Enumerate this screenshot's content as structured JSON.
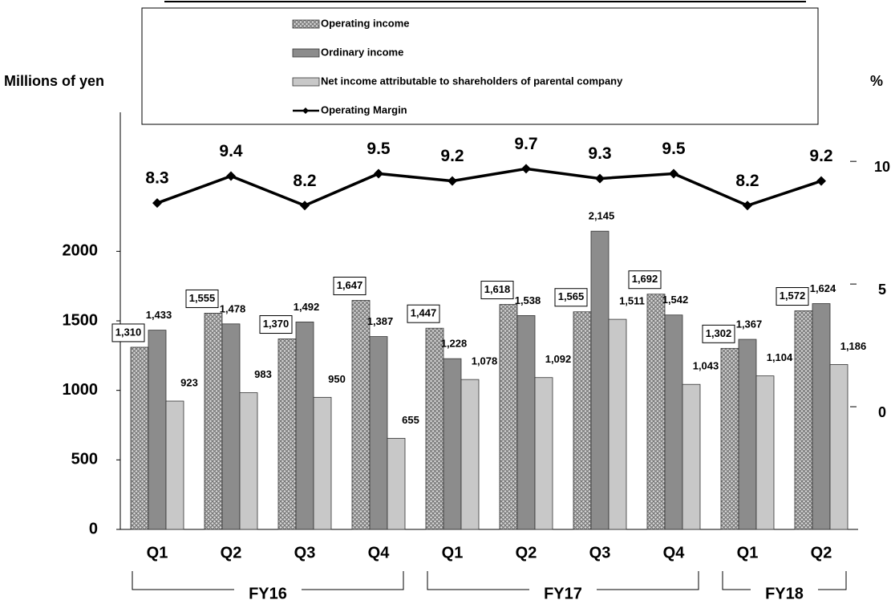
{
  "chart_data": {
    "type": "bar",
    "y_axis_title": "Millions of yen",
    "y2_axis_title": "%",
    "categories": [
      "Q1",
      "Q2",
      "Q3",
      "Q4",
      "Q1",
      "Q2",
      "Q3",
      "Q4",
      "Q1",
      "Q2"
    ],
    "category_groups": [
      "FY16",
      "FY16",
      "FY16",
      "FY16",
      "FY17",
      "FY17",
      "FY17",
      "FY17",
      "FY18",
      "FY18"
    ],
    "series": [
      {
        "name": "Operating income",
        "color": "#9a9a9a",
        "pattern": "crosshatch",
        "values": [
          1310,
          1555,
          1370,
          1647,
          1447,
          1618,
          1565,
          1692,
          1302,
          1572
        ],
        "value_labels": [
          "1,310",
          "1,555",
          "1,370",
          "1,647",
          "1,447",
          "1,618",
          "1,565",
          "1,692",
          "1,302",
          "1,572"
        ]
      },
      {
        "name": "Ordinary income",
        "color": "#8c8c8c",
        "values": [
          1433,
          1478,
          1492,
          1387,
          1228,
          1538,
          2145,
          1542,
          1367,
          1624
        ],
        "value_labels": [
          "1,433",
          "1,478",
          "1,492",
          "1,387",
          "1,228",
          "1,538",
          "2,145",
          "1,542",
          "1,367",
          "1,624"
        ]
      },
      {
        "name": "Net income attributable to shareholders of parental company",
        "color": "#c8c8c8",
        "values": [
          923,
          983,
          950,
          655,
          1078,
          1092,
          1511,
          1043,
          1104,
          1186
        ],
        "value_labels": [
          "923",
          "983",
          "950",
          "655",
          "1,078",
          "1,092",
          "1,511",
          "1,043",
          "1,104",
          "1,186"
        ]
      },
      {
        "name": "Operating Margin",
        "color": "#000000",
        "type": "line",
        "axis": "y2",
        "values": [
          8.3,
          9.4,
          8.2,
          9.5,
          9.2,
          9.7,
          9.3,
          9.5,
          8.2,
          9.2
        ]
      }
    ],
    "ylim": [
      0,
      3000
    ],
    "yticks": [
      0,
      500,
      1000,
      1500,
      2000
    ],
    "y2lim": [
      -5,
      12
    ],
    "y2ticks": [
      0,
      5,
      10
    ],
    "grid": false
  }
}
